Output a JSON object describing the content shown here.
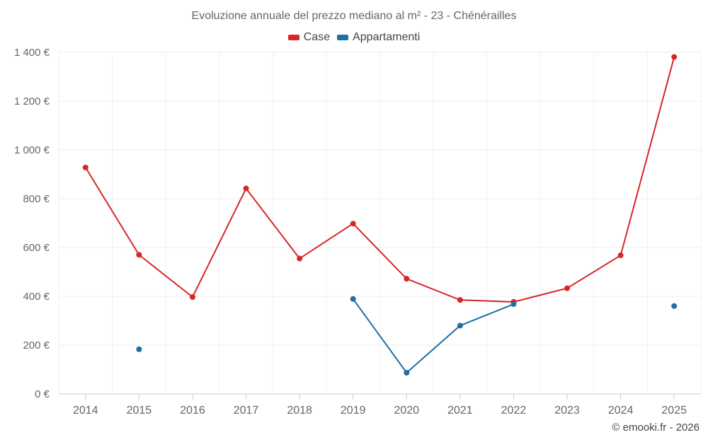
{
  "chart_data": {
    "type": "line",
    "title": "Evoluzione annuale del prezzo mediano al m² - 23 - Chénérailles",
    "xlabel": "",
    "ylabel": "",
    "categories": [
      "2014",
      "2015",
      "2016",
      "2017",
      "2018",
      "2019",
      "2020",
      "2021",
      "2022",
      "2023",
      "2024",
      "2025"
    ],
    "ylim": [
      0,
      1400
    ],
    "yticks": [
      0,
      200,
      400,
      600,
      800,
      1000,
      1200,
      1400
    ],
    "ytick_labels": [
      "0 €",
      "200 €",
      "400 €",
      "600 €",
      "800 €",
      "1 000 €",
      "1 200 €",
      "1 400 €"
    ],
    "grid": true,
    "legend_position": "top-center",
    "series": [
      {
        "name": "Case",
        "color": "#d62728",
        "values": [
          928,
          570,
          397,
          842,
          555,
          698,
          472,
          385,
          377,
          433,
          568,
          1381
        ]
      },
      {
        "name": "Appartamenti",
        "color": "#1f6fa5",
        "values": [
          null,
          183,
          null,
          null,
          null,
          389,
          87,
          280,
          368,
          null,
          null,
          360
        ]
      }
    ]
  },
  "credit": "© emooki.fr - 2026"
}
